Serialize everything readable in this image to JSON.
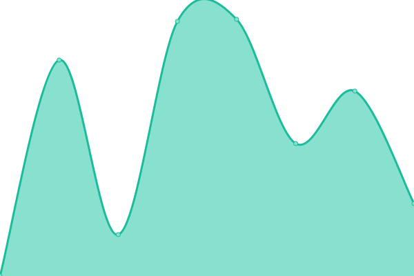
{
  "chart_data": {
    "type": "area",
    "x": [
      0,
      1,
      2,
      3,
      4,
      5,
      6,
      7
    ],
    "values": [
      0,
      313,
      60,
      369,
      372,
      192,
      268,
      105
    ],
    "ylim": [
      0,
      400
    ],
    "grid": false,
    "axes_visible": false,
    "curve": "smooth",
    "colors": {
      "line": "#1ABC9C",
      "fill": "#88E0CE",
      "marker_fill": "#88E0CE"
    }
  }
}
